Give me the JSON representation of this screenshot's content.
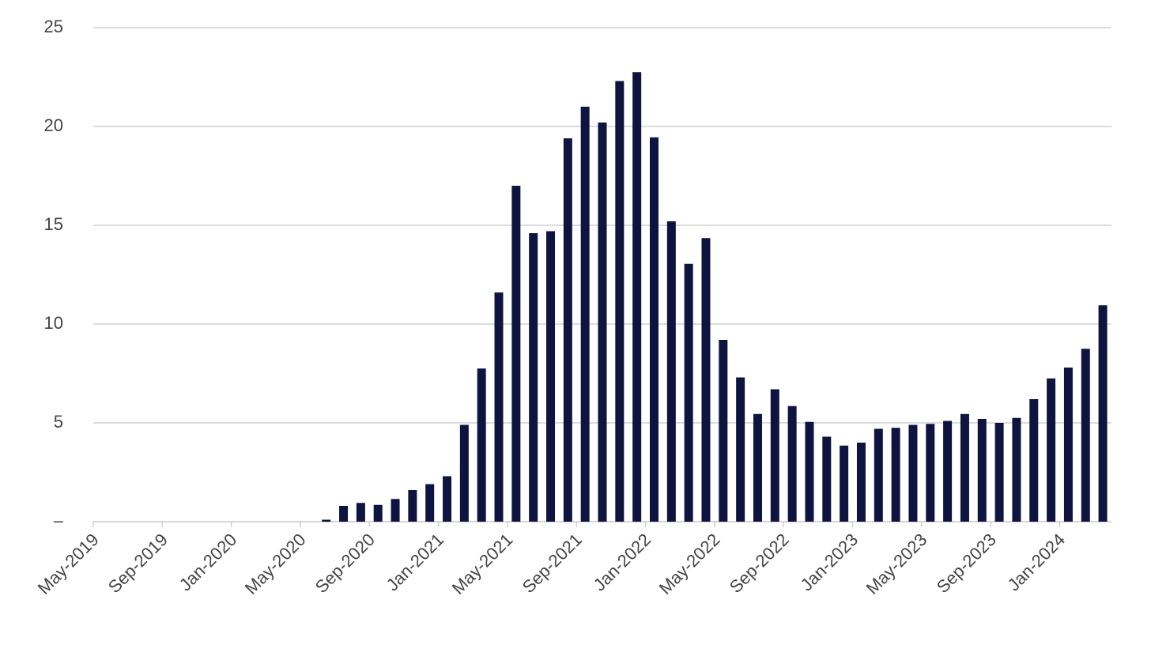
{
  "chart_data": {
    "type": "bar",
    "categories": [
      "May-2019",
      null,
      null,
      null,
      "Sep-2019",
      null,
      null,
      null,
      "Jan-2020",
      null,
      null,
      null,
      "May-2020",
      null,
      null,
      null,
      "Sep-2020",
      null,
      null,
      null,
      "Jan-2021",
      null,
      null,
      null,
      "May-2021",
      null,
      null,
      null,
      "Sep-2021",
      null,
      null,
      null,
      "Jan-2022",
      null,
      null,
      null,
      "May-2022",
      null,
      null,
      null,
      "Sep-2022",
      null,
      null,
      null,
      "Jan-2023",
      null,
      null,
      null,
      "May-2023",
      null,
      null,
      null,
      "Sep-2023",
      null,
      null,
      null,
      "Jan-2024",
      null,
      null
    ],
    "values": [
      0,
      0,
      0,
      0,
      0,
      0,
      0,
      0,
      0,
      0,
      0,
      0,
      0,
      0.1,
      0.8,
      0.95,
      0.85,
      1.15,
      1.6,
      1.9,
      2.3,
      4.9,
      7.75,
      11.6,
      17.0,
      14.6,
      14.7,
      19.4,
      21.0,
      20.2,
      22.3,
      22.75,
      19.45,
      15.2,
      13.05,
      14.35,
      9.2,
      7.3,
      5.45,
      6.7,
      5.85,
      5.05,
      4.3,
      3.85,
      4.0,
      4.7,
      4.75,
      4.9,
      4.95,
      5.1,
      5.45,
      5.2,
      5.0,
      5.25,
      6.2,
      7.25,
      7.8,
      8.75,
      10.95
    ],
    "color": "#0d1440",
    "ylim": [
      0,
      25
    ],
    "yticks": [
      {
        "value": 0,
        "label": "–"
      },
      5,
      10,
      15,
      20,
      25
    ],
    "grid": true
  }
}
